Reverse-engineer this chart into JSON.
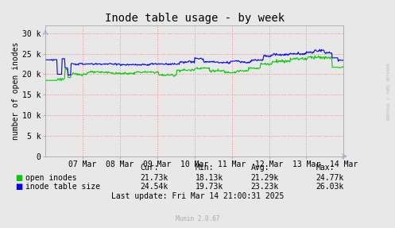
{
  "title": "Inode table usage - by week",
  "ylabel": "number of open inodes",
  "background_color": "#e8e8e8",
  "plot_bg_color": "#e8e8e8",
  "grid_color": "#ff8888",
  "ylim": [
    0,
    32000
  ],
  "yticks": [
    0,
    5000,
    10000,
    15000,
    20000,
    25000,
    30000
  ],
  "ytick_labels": [
    "0",
    "5 k",
    "10 k",
    "15 k",
    "20 k",
    "25 k",
    "30 k"
  ],
  "xtick_labels": [
    "07 Mar",
    "08 Mar",
    "09 Mar",
    "10 Mar",
    "11 Mar",
    "12 Mar",
    "13 Mar",
    "14 Mar"
  ],
  "line1_color": "#00cc00",
  "line2_color": "#0000ff",
  "legend_entries": [
    "open inodes",
    "inode table size"
  ],
  "stats": {
    "cur1": "21.73k",
    "min1": "18.13k",
    "avg1": "21.29k",
    "max1": "24.77k",
    "cur2": "24.54k",
    "min2": "19.73k",
    "avg2": "23.23k",
    "max2": "26.03k"
  },
  "footer": "Last update: Fri Mar 14 21:00:31 2025",
  "munin_version": "Munin 2.0.67",
  "watermark": "RRDTOOL / TOBI OETIKER",
  "title_fontsize": 10,
  "axis_fontsize": 7,
  "legend_fontsize": 7,
  "stats_fontsize": 7
}
